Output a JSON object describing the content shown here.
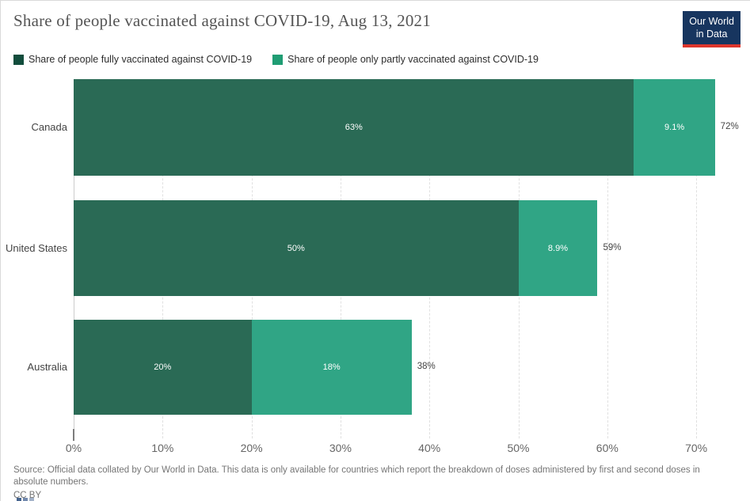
{
  "header": {
    "title": "Share of people vaccinated against COVID-19, Aug 13, 2021",
    "logo": {
      "line1": "Our World",
      "line2": "in Data",
      "bg_color": "#17355f",
      "accent_color": "#dd352c"
    }
  },
  "legend": {
    "items": [
      {
        "label": "Share of people fully vaccinated against COVID-19",
        "color": "#124d3c"
      },
      {
        "label": "Share of people only partly vaccinated against COVID-19",
        "color": "#1f9d73"
      }
    ]
  },
  "chart_data": {
    "type": "bar",
    "orientation": "horizontal",
    "stacked": true,
    "grid": true,
    "legend_position": "top",
    "categories": [
      "Canada",
      "United States",
      "Australia"
    ],
    "series": [
      {
        "name": "Share of people fully vaccinated against COVID-19",
        "color": "#2a6a55",
        "values": [
          63,
          50,
          20
        ],
        "labels": [
          "63%",
          "50%",
          "20%"
        ]
      },
      {
        "name": "Share of people only partly vaccinated against COVID-19",
        "color": "#30a585",
        "values": [
          9.1,
          8.9,
          18
        ],
        "labels": [
          "9.1%",
          "8.9%",
          "18%"
        ]
      }
    ],
    "totals": [
      72.1,
      58.9,
      38
    ],
    "total_labels": [
      "72%",
      "59%",
      "38%"
    ],
    "x_ticks": [
      "0%",
      "10%",
      "20%",
      "30%",
      "40%",
      "50%",
      "60%",
      "70%"
    ],
    "x_tick_values": [
      0,
      10,
      20,
      30,
      40,
      50,
      60,
      70
    ],
    "xlim": [
      0,
      70
    ]
  },
  "footer": {
    "source": "Source: Official data collated by Our World in Data. This data is only available for countries which report the breakdown of doses administered by first and second doses in absolute numbers.",
    "license": "CC BY"
  }
}
